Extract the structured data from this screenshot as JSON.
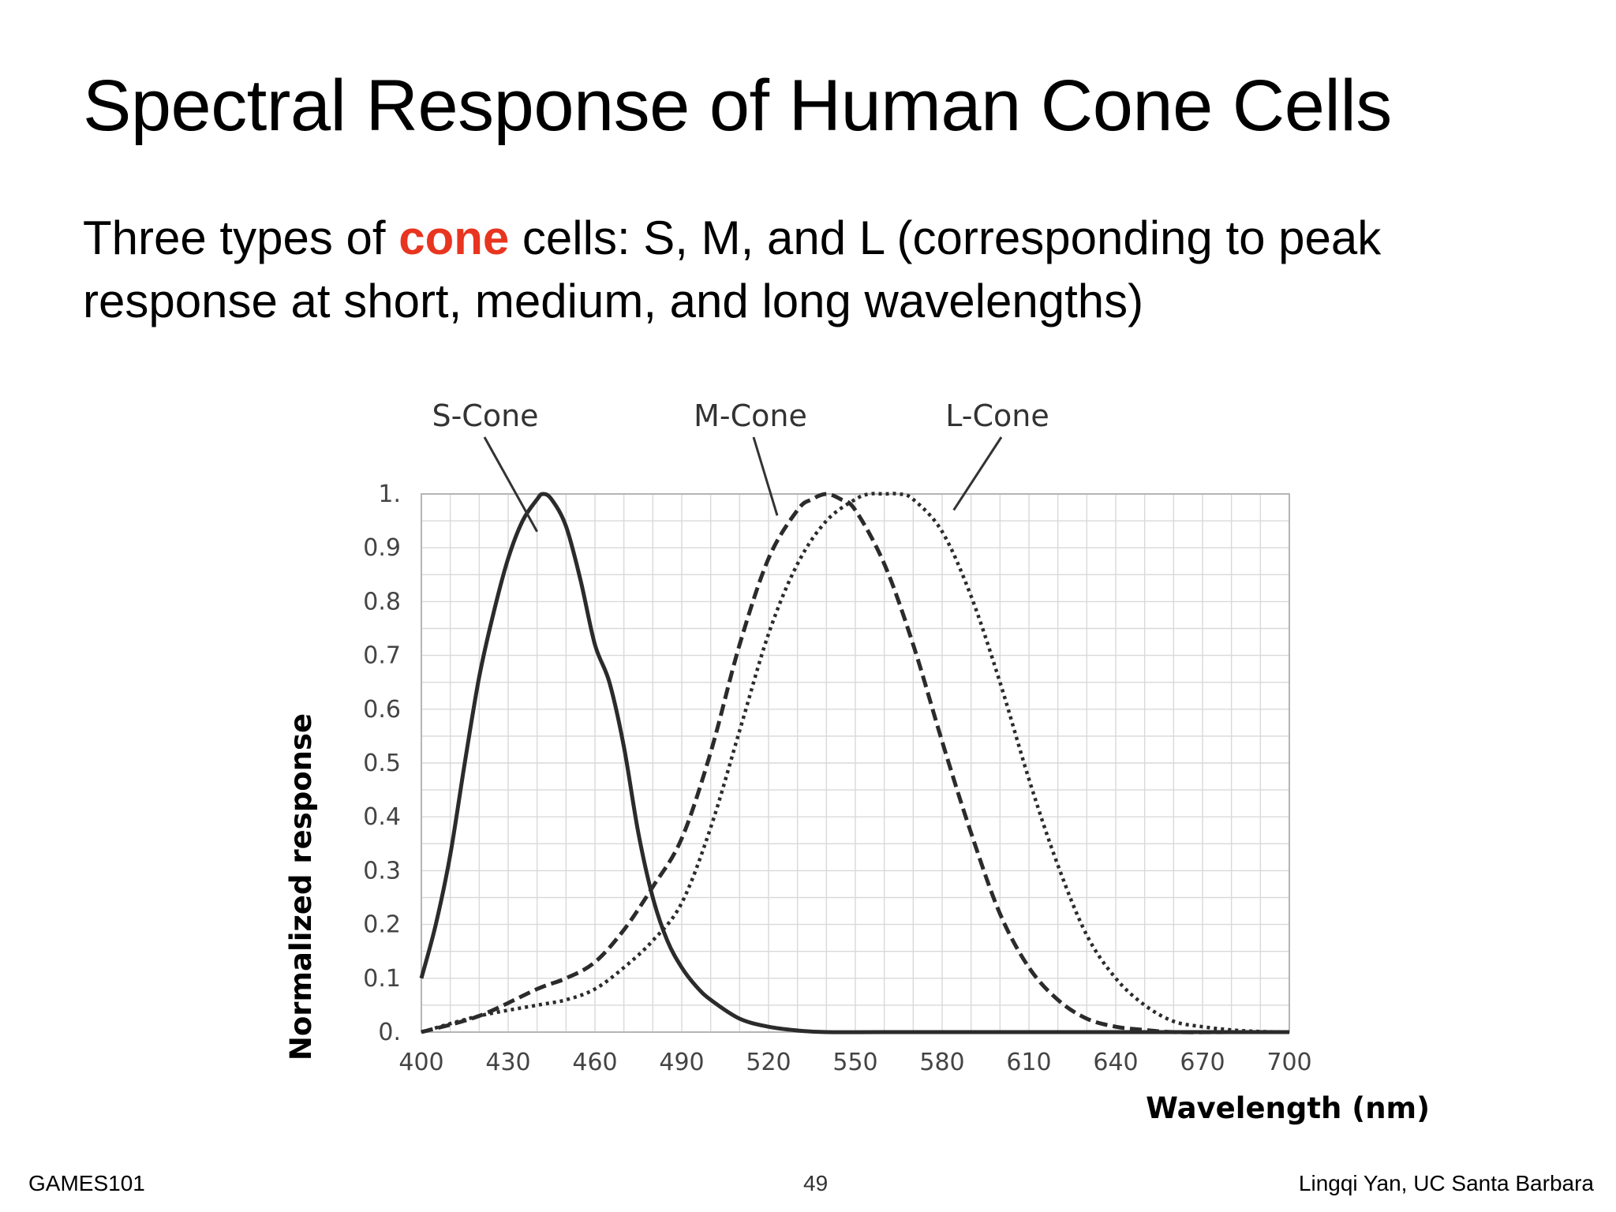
{
  "slide": {
    "title": "Spectral Response of Human Cone Cells",
    "bullet_before": "Three types of ",
    "bullet_highlight": "cone",
    "bullet_after": " cells: S, M, and L (corresponding to peak response at short, medium, and long wavelengths)",
    "highlight_color": "#e8351f"
  },
  "chart_data": {
    "type": "line",
    "xlabel": "Wavelength (nm)",
    "ylabel": "Normalized response",
    "xlim": [
      400,
      700
    ],
    "ylim": [
      0,
      1
    ],
    "x_ticks": [
      400,
      430,
      460,
      490,
      520,
      550,
      580,
      610,
      640,
      670,
      700
    ],
    "x_tick_labels": [
      "400",
      "430",
      "460",
      "490",
      "520",
      "550",
      "580",
      "610",
      "640",
      "670",
      "700"
    ],
    "y_ticks": [
      0,
      0.1,
      0.2,
      0.3,
      0.4,
      0.5,
      0.6,
      0.7,
      0.8,
      0.9,
      1
    ],
    "y_tick_labels": [
      "0.",
      "0.1",
      "0.2",
      "0.3",
      "0.4",
      "0.5",
      "0.6",
      "0.7",
      "0.8",
      "0.9",
      "1."
    ],
    "grid": true,
    "series": [
      {
        "name": "S-Cone",
        "style": "solid",
        "x": [
          400,
          405,
          410,
          415,
          420,
          425,
          430,
          435,
          440,
          442,
          445,
          450,
          455,
          460,
          465,
          470,
          475,
          480,
          485,
          490,
          495,
          500,
          510,
          520,
          530,
          540,
          560,
          600,
          650,
          700
        ],
        "y": [
          0.1,
          0.2,
          0.33,
          0.5,
          0.66,
          0.78,
          0.88,
          0.95,
          0.99,
          1.0,
          0.99,
          0.94,
          0.84,
          0.72,
          0.65,
          0.53,
          0.37,
          0.25,
          0.17,
          0.12,
          0.085,
          0.06,
          0.025,
          0.01,
          0.003,
          0.0,
          0.0,
          0.0,
          0.0,
          0.0
        ]
      },
      {
        "name": "M-Cone",
        "style": "dashed",
        "x": [
          400,
          420,
          440,
          450,
          460,
          470,
          480,
          490,
          500,
          510,
          520,
          530,
          535,
          540,
          545,
          550,
          560,
          570,
          580,
          590,
          600,
          610,
          620,
          630,
          640,
          650,
          660,
          680,
          700
        ],
        "y": [
          0.0,
          0.03,
          0.08,
          0.1,
          0.13,
          0.19,
          0.27,
          0.36,
          0.52,
          0.72,
          0.88,
          0.97,
          0.99,
          1.0,
          0.99,
          0.97,
          0.87,
          0.72,
          0.54,
          0.37,
          0.22,
          0.12,
          0.06,
          0.025,
          0.01,
          0.004,
          0.0,
          0.0,
          0.0
        ]
      },
      {
        "name": "L-Cone",
        "style": "dotted",
        "x": [
          400,
          420,
          440,
          450,
          460,
          470,
          480,
          490,
          500,
          510,
          520,
          530,
          540,
          550,
          555,
          560,
          565,
          570,
          580,
          590,
          600,
          610,
          620,
          630,
          640,
          650,
          660,
          670,
          680,
          690,
          700
        ],
        "y": [
          0.0,
          0.03,
          0.05,
          0.06,
          0.08,
          0.12,
          0.17,
          0.24,
          0.38,
          0.56,
          0.74,
          0.87,
          0.95,
          0.99,
          1.0,
          1.0,
          1.0,
          0.99,
          0.93,
          0.81,
          0.65,
          0.47,
          0.31,
          0.18,
          0.1,
          0.05,
          0.02,
          0.01,
          0.004,
          0.001,
          0.0
        ]
      }
    ],
    "annotations": [
      {
        "text": "S-Cone",
        "series": "S-Cone",
        "points_to": [
          440,
          0.93
        ]
      },
      {
        "text": "M-Cone",
        "series": "M-Cone",
        "points_to": [
          523,
          0.96
        ]
      },
      {
        "text": "L-Cone",
        "series": "L-Cone",
        "points_to": [
          584,
          0.97
        ]
      }
    ]
  },
  "footer": {
    "left": "GAMES101",
    "page": "49",
    "right": "Lingqi Yan, UC Santa Barbara"
  }
}
